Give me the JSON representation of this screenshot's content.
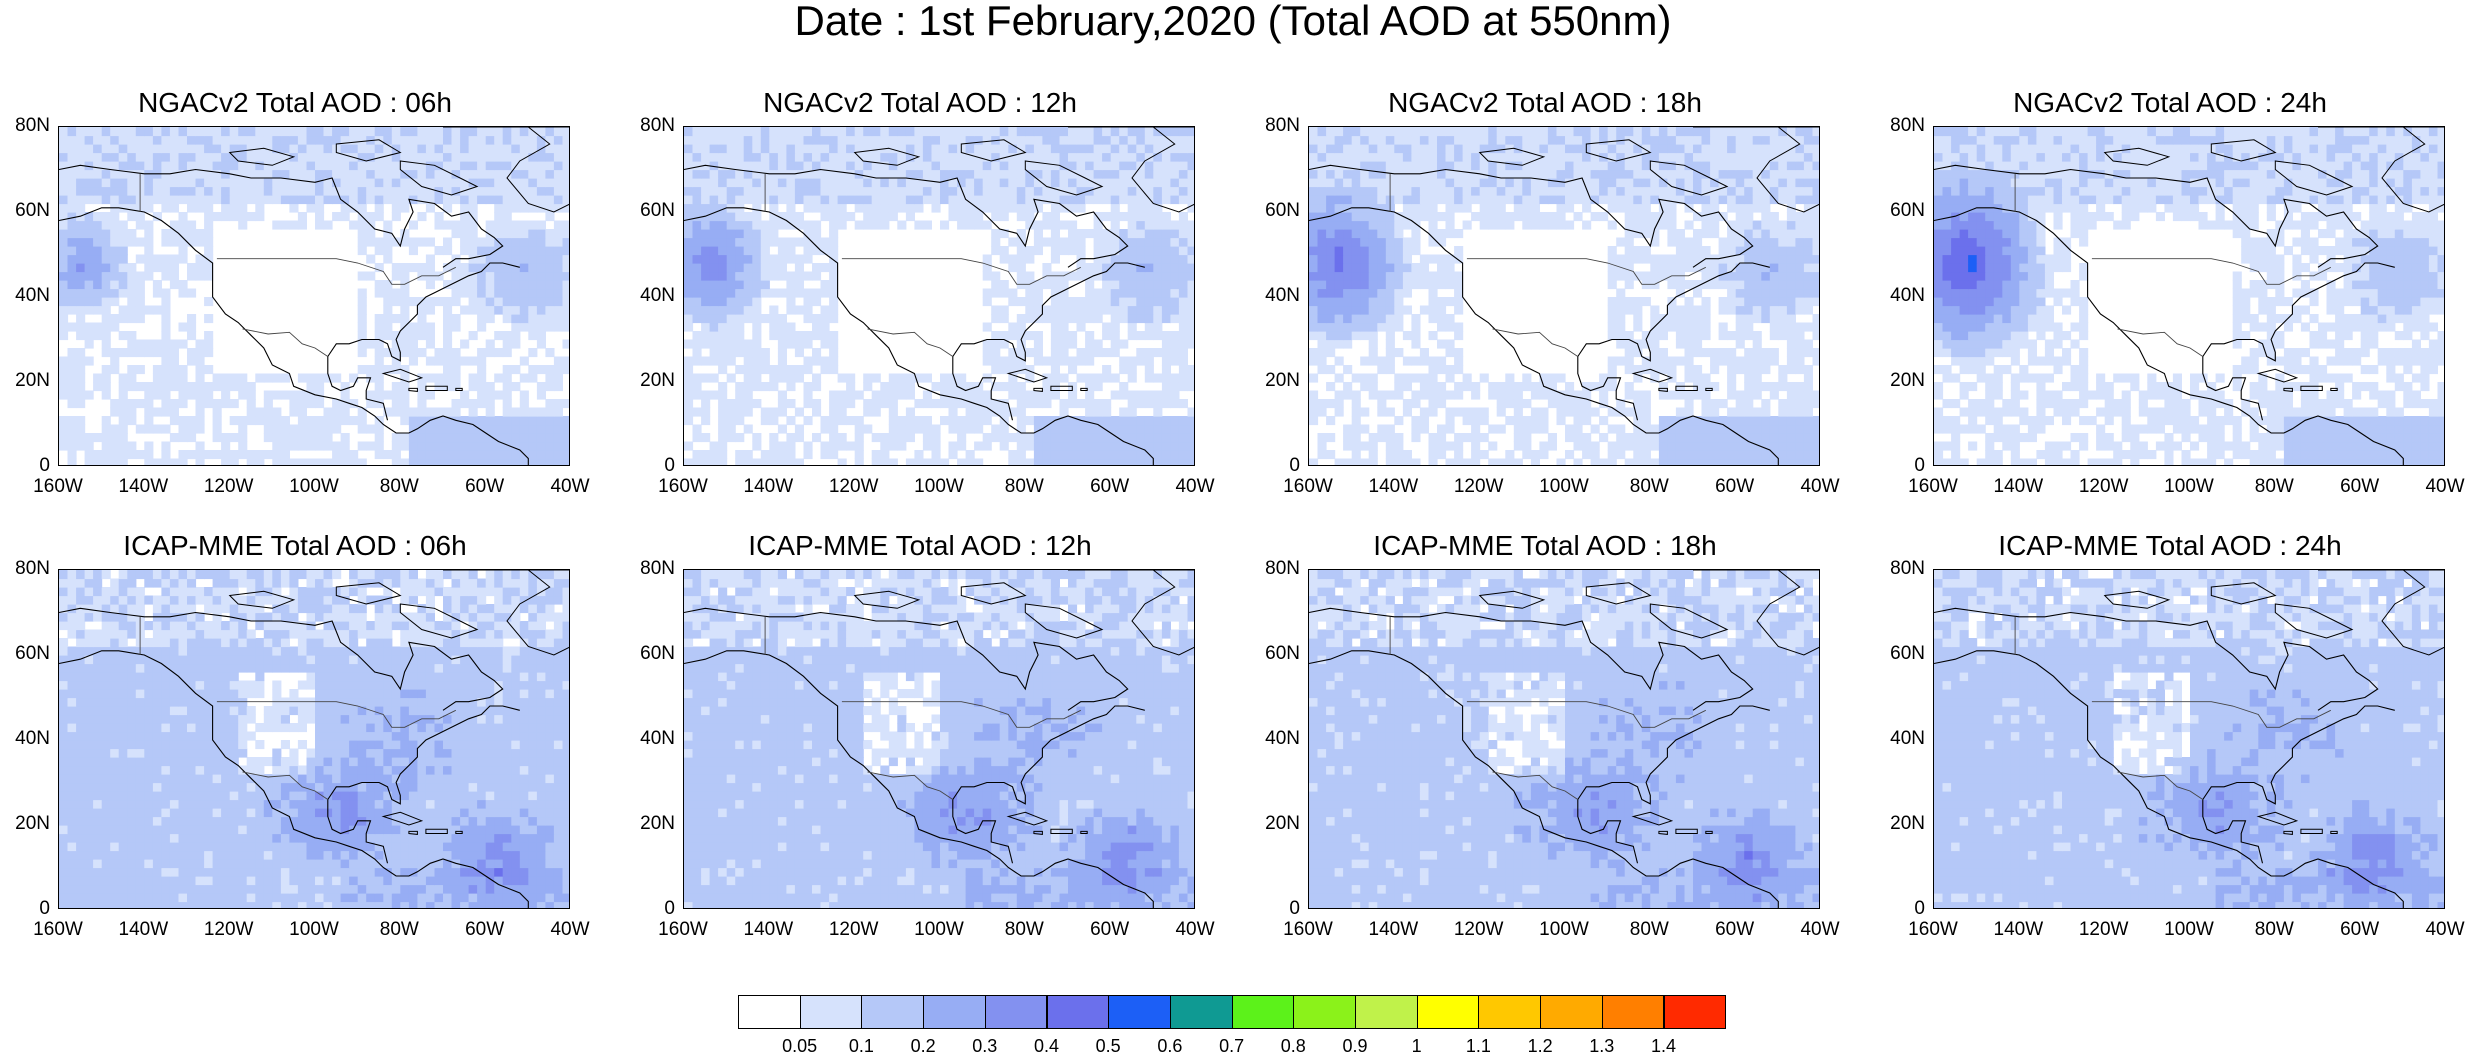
{
  "title": "Date : 1st February,2020 (Total AOD at 550nm)",
  "panels": [
    {
      "title": "NGACv2 Total AOD : 06h",
      "model": "NGACv2",
      "hour": 6
    },
    {
      "title": "NGACv2 Total AOD : 12h",
      "model": "NGACv2",
      "hour": 12
    },
    {
      "title": "NGACv2 Total AOD : 18h",
      "model": "NGACv2",
      "hour": 18
    },
    {
      "title": "NGACv2 Total AOD : 24h",
      "model": "NGACv2",
      "hour": 24
    },
    {
      "title": "ICAP-MME Total AOD : 06h",
      "model": "ICAP-MME",
      "hour": 6
    },
    {
      "title": "ICAP-MME Total AOD : 12h",
      "model": "ICAP-MME",
      "hour": 12
    },
    {
      "title": "ICAP-MME Total AOD : 18h",
      "model": "ICAP-MME",
      "hour": 18
    },
    {
      "title": "ICAP-MME Total AOD : 24h",
      "model": "ICAP-MME",
      "hour": 24
    }
  ],
  "axes": {
    "lat_labels": [
      "80N",
      "60N",
      "40N",
      "20N",
      "0"
    ],
    "lon_labels": [
      "160W",
      "140W",
      "120W",
      "100W",
      "80W",
      "60W",
      "40W"
    ],
    "lat_range": [
      0,
      80
    ],
    "lon_range": [
      -160,
      -40
    ]
  },
  "colorbar": {
    "labels": [
      "0.05",
      "0.1",
      "0.2",
      "0.3",
      "0.4",
      "0.5",
      "0.6",
      "0.7",
      "0.8",
      "0.9",
      "1",
      "1.1",
      "1.2",
      "1.3",
      "1.4"
    ],
    "colors": [
      "#ffffff",
      "#d6e2fc",
      "#b5c8f8",
      "#97adf4",
      "#8391f0",
      "#6b70ec",
      "#1c5ff6",
      "#0f9a93",
      "#5cf21a",
      "#8bf21a",
      "#c0f24a",
      "#ffff00",
      "#ffc800",
      "#ffaa00",
      "#ff7f00",
      "#ff2a00"
    ]
  }
}
